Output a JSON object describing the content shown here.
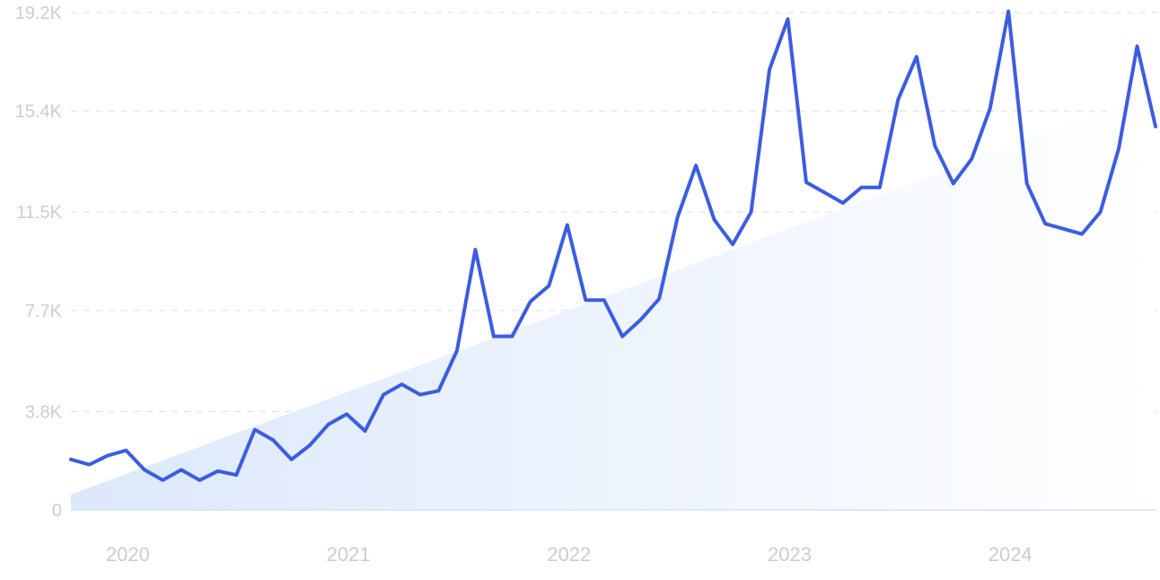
{
  "chart_data": {
    "type": "line",
    "y_ticks": [
      "0",
      "3.8K",
      "7.7K",
      "11.5K",
      "15.4K",
      "19.2K"
    ],
    "y_tick_values": [
      0,
      3800,
      7700,
      11500,
      15400,
      19200
    ],
    "ylim": [
      0,
      19200
    ],
    "x_ticks": [
      "2020",
      "2021",
      "2022",
      "2023",
      "2024"
    ],
    "x_range": [
      "2019-10",
      "2024-09"
    ],
    "grid": true,
    "colors": {
      "line": "#3b5de0",
      "trend_fill_start": "#dce8fb",
      "trend_fill_end": "#ffffff",
      "grid": "#dfe3ec",
      "tick_text": "#c9cdd8"
    },
    "series": [
      {
        "x": [
          "2019-10",
          "2019-11",
          "2019-12",
          "2020-01",
          "2020-02",
          "2020-03",
          "2020-04",
          "2020-05",
          "2020-06",
          "2020-07",
          "2020-08",
          "2020-09",
          "2020-10",
          "2020-11",
          "2020-12",
          "2021-01",
          "2021-02",
          "2021-03",
          "2021-04",
          "2021-05",
          "2021-06",
          "2021-07",
          "2021-08",
          "2021-09",
          "2021-10",
          "2021-11",
          "2021-12",
          "2022-01",
          "2022-02",
          "2022-03",
          "2022-04",
          "2022-05",
          "2022-06",
          "2022-07",
          "2022-08",
          "2022-09",
          "2022-10",
          "2022-11",
          "2022-12",
          "2023-01",
          "2023-02",
          "2023-03",
          "2023-04",
          "2023-05",
          "2023-06",
          "2023-07",
          "2023-08",
          "2023-09",
          "2023-10",
          "2023-11",
          "2023-12",
          "2024-01",
          "2024-02",
          "2024-03",
          "2024-04",
          "2024-05",
          "2024-06",
          "2024-07",
          "2024-08",
          "2024-09"
        ],
        "values": [
          1950,
          1750,
          2100,
          2300,
          1550,
          1150,
          1550,
          1150,
          1500,
          1350,
          3100,
          2700,
          1950,
          2500,
          3300,
          3700,
          3050,
          4450,
          4850,
          4450,
          4600,
          6150,
          10050,
          6700,
          6700,
          8050,
          8650,
          11000,
          8100,
          8100,
          6700,
          7350,
          8150,
          11300,
          13300,
          11200,
          10250,
          11500,
          17000,
          18950,
          12650,
          12250,
          11850,
          12450,
          12450,
          15850,
          17500,
          14050,
          12600,
          13550,
          15500,
          19250,
          12600,
          11050,
          10850,
          10650,
          11500,
          13950,
          17900,
          14800
        ]
      }
    ],
    "trend": {
      "start": 600,
      "end": 16100
    }
  }
}
